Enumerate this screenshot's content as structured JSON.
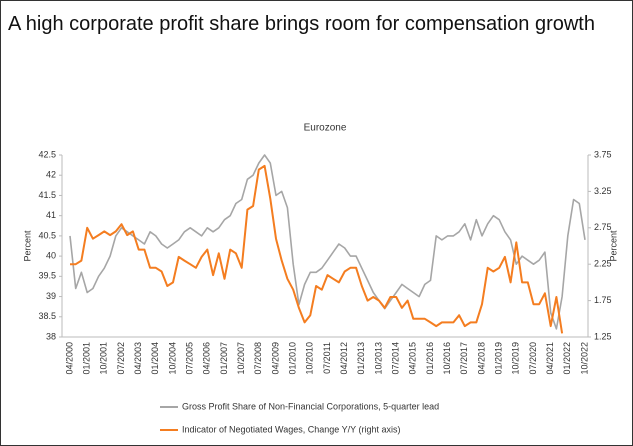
{
  "chart_data": {
    "type": "line",
    "title": "A high corporate profit share brings room for compensation growth",
    "subtitle": "Eurozone",
    "ylabel": "Percent",
    "y2label": "Percent",
    "categories": [
      "04/2000",
      null,
      null,
      "01/2001",
      null,
      null,
      "10/2001",
      null,
      null,
      "07/2002",
      null,
      null,
      "04/2003",
      null,
      null,
      "01/2004",
      null,
      null,
      "10/2004",
      null,
      null,
      "07/2005",
      null,
      null,
      "04/2006",
      null,
      null,
      "01/2007",
      null,
      null,
      "10/2007",
      null,
      null,
      "07/2008",
      null,
      null,
      "04/2009",
      null,
      null,
      "01/2010",
      null,
      null,
      "10/2010",
      null,
      null,
      "07/2011",
      null,
      null,
      "04/2012",
      null,
      null,
      "01/2013",
      null,
      null,
      "10/2013",
      null,
      null,
      "07/2014",
      null,
      null,
      "04/2015",
      null,
      null,
      "01/2016",
      null,
      null,
      "10/2016",
      null,
      null,
      "07/2017",
      null,
      null,
      "04/2018",
      null,
      null,
      "01/2019",
      null,
      null,
      "10/2019",
      null,
      null,
      "07/2020",
      null,
      null,
      "04/2021",
      null,
      null,
      "01/2022",
      null,
      null,
      "10/2022"
    ],
    "series": [
      {
        "name": "Gross Profit Share of Non-Financial Corporations, 5-quarter lead",
        "color": "#a6a6a6",
        "values": [
          40.5,
          39.2,
          39.6,
          39.1,
          39.2,
          39.5,
          39.7,
          40.0,
          40.5,
          40.7,
          40.6,
          40.5,
          40.4,
          40.3,
          40.6,
          40.5,
          40.3,
          40.2,
          40.3,
          40.4,
          40.6,
          40.7,
          40.6,
          40.5,
          40.7,
          40.6,
          40.7,
          40.9,
          41.0,
          41.3,
          41.4,
          41.9,
          42.0,
          42.3,
          42.5,
          42.3,
          41.5,
          41.6,
          41.2,
          39.8,
          38.8,
          39.3,
          39.6,
          39.6,
          39.7,
          39.9,
          40.1,
          40.3,
          40.2,
          40.0,
          40.0,
          39.7,
          39.4,
          39.1,
          38.9,
          38.7,
          38.9,
          39.1,
          39.3,
          39.2,
          39.1,
          39.0,
          39.3,
          39.4,
          40.5,
          40.4,
          40.5,
          40.5,
          40.6,
          40.8,
          40.4,
          40.9,
          40.5,
          40.8,
          41.0,
          40.9,
          40.6,
          40.4,
          39.8,
          40.0,
          39.9,
          39.8,
          39.9,
          40.1,
          38.6,
          38.2,
          39.0,
          40.5,
          41.4,
          41.3,
          40.4
        ]
      },
      {
        "name": "Indicator of Negotiated Wages, Change Y/Y (right axis)",
        "color": "#f47d20",
        "axis": "y2",
        "values": [
          2.25,
          2.25,
          2.3,
          2.75,
          2.6,
          2.65,
          2.7,
          2.65,
          2.7,
          2.8,
          2.65,
          2.7,
          2.45,
          2.45,
          2.2,
          2.2,
          2.15,
          1.95,
          2.0,
          2.35,
          2.3,
          2.25,
          2.2,
          2.35,
          2.45,
          2.1,
          2.4,
          2.05,
          2.45,
          2.4,
          2.2,
          3.0,
          3.05,
          3.55,
          3.6,
          3.15,
          2.6,
          2.3,
          2.05,
          1.9,
          1.65,
          1.45,
          1.55,
          1.95,
          1.9,
          2.1,
          2.05,
          2.0,
          2.15,
          2.2,
          2.2,
          1.95,
          1.75,
          1.8,
          1.75,
          1.65,
          1.8,
          1.8,
          1.65,
          1.75,
          1.5,
          1.5,
          1.5,
          1.45,
          1.4,
          1.45,
          1.45,
          1.45,
          1.55,
          1.4,
          1.45,
          1.45,
          1.7,
          2.2,
          2.15,
          2.2,
          2.35,
          2.0,
          2.55,
          2.0,
          2.0,
          1.7,
          1.7,
          1.85,
          1.4,
          1.8,
          1.3,
          null,
          null,
          null,
          null
        ]
      }
    ],
    "ylim": [
      38,
      42.5
    ],
    "yticks": [
      42.5,
      42,
      41.5,
      41,
      40.5,
      40,
      39.5,
      39,
      38.5,
      38
    ],
    "y2lim": [
      1.25,
      3.75
    ],
    "y2ticks": [
      3.75,
      3.25,
      2.75,
      2.25,
      1.75,
      1.25
    ],
    "legend": "bottom"
  }
}
